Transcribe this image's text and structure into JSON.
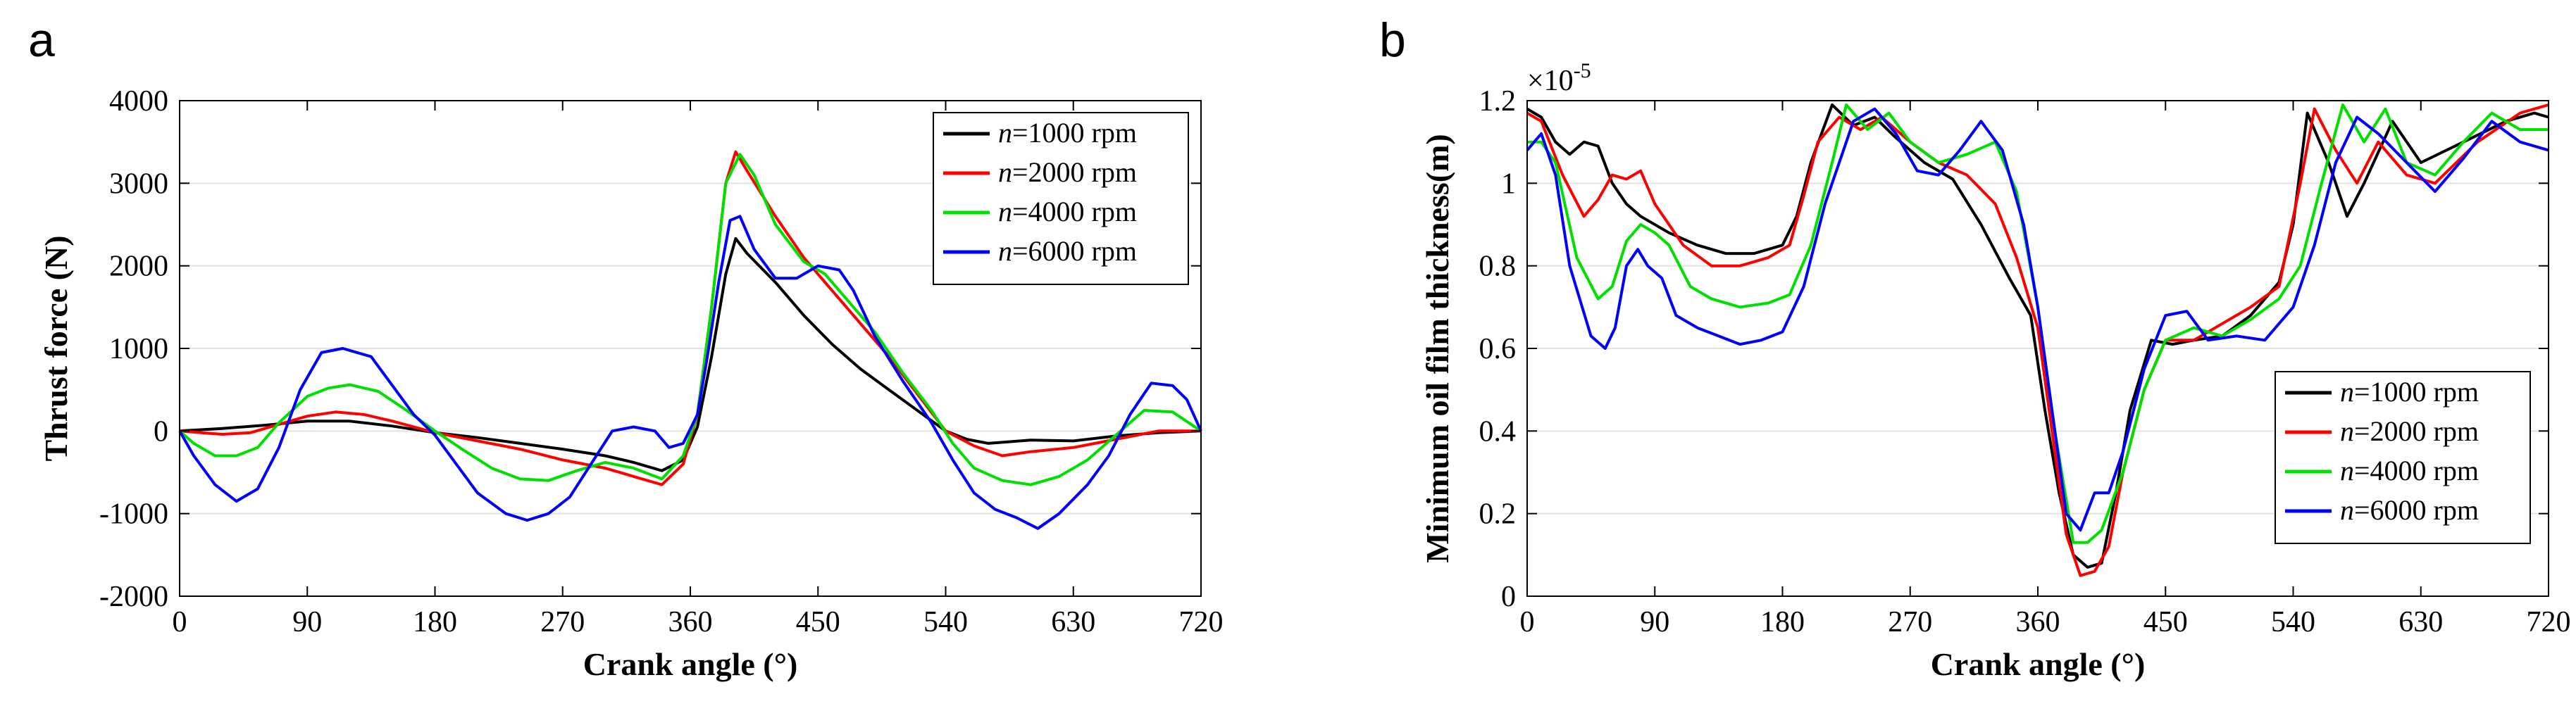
{
  "chart_data": [
    {
      "type": "line",
      "panel_label": "a",
      "xlabel": "Crank angle (°)",
      "ylabel": "Thrust force (N)",
      "xlim": [
        0,
        720
      ],
      "ylim": [
        -2000,
        4000
      ],
      "xticks": [
        0,
        90,
        180,
        270,
        360,
        450,
        540,
        630,
        720
      ],
      "yticks": [
        -2000,
        -1000,
        0,
        1000,
        2000,
        3000,
        4000
      ],
      "ytick_labels": [
        "-2000",
        "-1000",
        "0",
        "1000",
        "2000",
        "3000",
        "4000"
      ],
      "grid": "horizontal",
      "legend_position": "top-right",
      "series": [
        {
          "name": "n=1000 rpm",
          "prefix": "n",
          "suffix": "=1000 rpm",
          "color": "#000000",
          "x": [
            0,
            30,
            60,
            90,
            120,
            150,
            180,
            210,
            240,
            270,
            300,
            320,
            340,
            355,
            365,
            375,
            385,
            392,
            400,
            420,
            440,
            460,
            480,
            500,
            520,
            540,
            555,
            570,
            600,
            630,
            660,
            690,
            720
          ],
          "y": [
            0,
            30,
            70,
            120,
            120,
            60,
            -20,
            -80,
            -150,
            -220,
            -300,
            -380,
            -480,
            -350,
            50,
            900,
            1900,
            2330,
            2150,
            1800,
            1400,
            1050,
            750,
            500,
            250,
            0,
            -100,
            -150,
            -110,
            -120,
            -60,
            -20,
            0
          ]
        },
        {
          "name": "n=2000 rpm",
          "prefix": "n",
          "suffix": "=2000 rpm",
          "color": "#ff0000",
          "x": [
            0,
            15,
            30,
            50,
            70,
            90,
            110,
            130,
            150,
            180,
            210,
            240,
            270,
            300,
            320,
            340,
            355,
            365,
            375,
            385,
            392,
            400,
            420,
            440,
            460,
            480,
            500,
            520,
            540,
            560,
            580,
            600,
            630,
            660,
            690,
            720
          ],
          "y": [
            0,
            -20,
            -40,
            -20,
            80,
            180,
            230,
            200,
            120,
            -20,
            -120,
            -220,
            -350,
            -450,
            -550,
            -650,
            -400,
            200,
            1500,
            3000,
            3380,
            3150,
            2600,
            2100,
            1700,
            1300,
            900,
            450,
            0,
            -180,
            -300,
            -250,
            -200,
            -100,
            0,
            0
          ]
        },
        {
          "name": "n=4000 rpm",
          "prefix": "n",
          "suffix": "=4000 rpm",
          "color": "#00e000",
          "x": [
            0,
            10,
            25,
            40,
            55,
            70,
            90,
            105,
            120,
            140,
            160,
            180,
            200,
            220,
            240,
            260,
            280,
            300,
            320,
            340,
            355,
            365,
            375,
            385,
            395,
            405,
            420,
            440,
            455,
            470,
            490,
            510,
            530,
            545,
            560,
            580,
            600,
            620,
            640,
            660,
            680,
            700,
            720
          ],
          "y": [
            0,
            -150,
            -300,
            -300,
            -200,
            100,
            420,
            520,
            560,
            480,
            250,
            0,
            -230,
            -450,
            -580,
            -600,
            -480,
            -380,
            -450,
            -580,
            -300,
            200,
            1500,
            3000,
            3350,
            3100,
            2500,
            2050,
            1900,
            1600,
            1200,
            700,
            250,
            -150,
            -450,
            -600,
            -650,
            -550,
            -350,
            -50,
            250,
            230,
            0
          ]
        },
        {
          "name": "n=6000 rpm",
          "prefix": "n",
          "suffix": "=6000 rpm",
          "color": "#0000ff",
          "x": [
            0,
            10,
            25,
            40,
            55,
            70,
            85,
            100,
            115,
            135,
            150,
            165,
            180,
            195,
            210,
            230,
            245,
            260,
            275,
            290,
            305,
            320,
            335,
            345,
            355,
            365,
            372,
            380,
            388,
            395,
            405,
            420,
            435,
            450,
            465,
            475,
            490,
            510,
            530,
            545,
            560,
            575,
            590,
            605,
            620,
            640,
            655,
            670,
            685,
            700,
            710,
            720
          ],
          "y": [
            0,
            -300,
            -650,
            -850,
            -700,
            -200,
            500,
            950,
            1000,
            900,
            550,
            200,
            -50,
            -400,
            -750,
            -1000,
            -1080,
            -1000,
            -800,
            -400,
            0,
            50,
            0,
            -200,
            -150,
            200,
            900,
            1800,
            2550,
            2600,
            2200,
            1850,
            1850,
            2000,
            1950,
            1700,
            1150,
            600,
            100,
            -350,
            -750,
            -950,
            -1050,
            -1180,
            -1000,
            -650,
            -300,
            200,
            580,
            550,
            380,
            0
          ]
        }
      ]
    },
    {
      "type": "line",
      "panel_label": "b",
      "xlabel": "Crank angle (°)",
      "ylabel": "Minimum oil film thickness(m)",
      "multiplier_base": "×10",
      "multiplier_exponent": "-5",
      "xlim": [
        0,
        720
      ],
      "ylim": [
        0,
        1.2
      ],
      "xticks": [
        0,
        90,
        180,
        270,
        360,
        450,
        540,
        630,
        720
      ],
      "yticks": [
        0,
        0.2,
        0.4,
        0.6,
        0.8,
        1,
        1.2
      ],
      "ytick_labels": [
        "0",
        "0.2",
        "0.4",
        "0.6",
        "0.8",
        "1",
        "1.2"
      ],
      "grid": "horizontal",
      "legend_position": "bottom-right",
      "series": [
        {
          "name": "n=1000 rpm",
          "prefix": "n",
          "suffix": "=1000 rpm",
          "color": "#000000",
          "x": [
            0,
            10,
            20,
            30,
            40,
            50,
            60,
            70,
            80,
            100,
            120,
            140,
            160,
            180,
            190,
            200,
            215,
            230,
            245,
            260,
            280,
            300,
            320,
            340,
            355,
            365,
            375,
            385,
            395,
            405,
            415,
            425,
            440,
            455,
            470,
            490,
            510,
            530,
            540,
            550,
            565,
            578,
            590,
            610,
            630,
            660,
            690,
            710,
            720
          ],
          "y": [
            1.18,
            1.16,
            1.1,
            1.07,
            1.1,
            1.09,
            1.0,
            0.95,
            0.92,
            0.88,
            0.85,
            0.83,
            0.83,
            0.85,
            0.92,
            1.05,
            1.19,
            1.14,
            1.16,
            1.11,
            1.05,
            1.01,
            0.9,
            0.77,
            0.68,
            0.45,
            0.25,
            0.1,
            0.07,
            0.08,
            0.25,
            0.45,
            0.62,
            0.61,
            0.62,
            0.63,
            0.68,
            0.76,
            0.9,
            1.17,
            1.05,
            0.92,
            1.0,
            1.15,
            1.05,
            1.1,
            1.15,
            1.17,
            1.16
          ]
        },
        {
          "name": "n=2000 rpm",
          "prefix": "n",
          "suffix": "=2000 rpm",
          "color": "#ff0000",
          "x": [
            0,
            10,
            25,
            40,
            50,
            60,
            70,
            80,
            90,
            110,
            130,
            150,
            170,
            185,
            195,
            205,
            220,
            235,
            250,
            270,
            290,
            310,
            330,
            345,
            360,
            370,
            380,
            390,
            400,
            410,
            420,
            435,
            450,
            470,
            490,
            510,
            530,
            545,
            555,
            570,
            585,
            600,
            620,
            640,
            670,
            700,
            720
          ],
          "y": [
            1.17,
            1.15,
            1.02,
            0.92,
            0.96,
            1.02,
            1.01,
            1.03,
            0.95,
            0.85,
            0.8,
            0.8,
            0.82,
            0.85,
            0.97,
            1.1,
            1.16,
            1.13,
            1.16,
            1.1,
            1.05,
            1.02,
            0.95,
            0.82,
            0.65,
            0.4,
            0.15,
            0.05,
            0.06,
            0.12,
            0.3,
            0.5,
            0.62,
            0.62,
            0.66,
            0.7,
            0.75,
            1.0,
            1.18,
            1.08,
            1.0,
            1.1,
            1.02,
            1.0,
            1.1,
            1.17,
            1.19
          ]
        },
        {
          "name": "n=4000 rpm",
          "prefix": "n",
          "suffix": "=4000 rpm",
          "color": "#00e000",
          "x": [
            0,
            10,
            20,
            35,
            50,
            60,
            70,
            80,
            90,
            100,
            115,
            130,
            150,
            170,
            185,
            200,
            215,
            225,
            240,
            255,
            270,
            290,
            310,
            330,
            345,
            360,
            372,
            385,
            395,
            405,
            420,
            435,
            450,
            470,
            490,
            510,
            530,
            545,
            560,
            575,
            590,
            605,
            620,
            640,
            660,
            680,
            700,
            720
          ],
          "y": [
            1.1,
            1.1,
            1.05,
            0.82,
            0.72,
            0.75,
            0.86,
            0.9,
            0.88,
            0.85,
            0.75,
            0.72,
            0.7,
            0.71,
            0.73,
            0.85,
            1.05,
            1.19,
            1.13,
            1.17,
            1.1,
            1.05,
            1.07,
            1.1,
            0.98,
            0.7,
            0.4,
            0.13,
            0.13,
            0.16,
            0.3,
            0.5,
            0.62,
            0.65,
            0.63,
            0.67,
            0.72,
            0.8,
            1.0,
            1.19,
            1.1,
            1.18,
            1.05,
            1.02,
            1.1,
            1.17,
            1.13,
            1.13
          ]
        },
        {
          "name": "n=6000 rpm",
          "prefix": "n",
          "suffix": "=6000 rpm",
          "color": "#0000ff",
          "x": [
            0,
            10,
            20,
            30,
            45,
            55,
            62,
            70,
            78,
            85,
            95,
            105,
            120,
            135,
            150,
            165,
            180,
            195,
            210,
            230,
            245,
            260,
            275,
            290,
            305,
            320,
            335,
            350,
            360,
            370,
            380,
            390,
            400,
            410,
            420,
            435,
            450,
            465,
            480,
            500,
            520,
            540,
            555,
            570,
            585,
            600,
            620,
            640,
            660,
            680,
            700,
            720
          ],
          "y": [
            1.08,
            1.12,
            1.02,
            0.8,
            0.63,
            0.6,
            0.65,
            0.8,
            0.84,
            0.8,
            0.77,
            0.68,
            0.65,
            0.63,
            0.61,
            0.62,
            0.64,
            0.75,
            0.95,
            1.15,
            1.18,
            1.12,
            1.03,
            1.02,
            1.08,
            1.15,
            1.08,
            0.9,
            0.7,
            0.45,
            0.2,
            0.16,
            0.25,
            0.25,
            0.35,
            0.55,
            0.68,
            0.69,
            0.62,
            0.63,
            0.62,
            0.7,
            0.85,
            1.05,
            1.16,
            1.12,
            1.05,
            0.98,
            1.06,
            1.15,
            1.1,
            1.08
          ]
        }
      ]
    }
  ]
}
